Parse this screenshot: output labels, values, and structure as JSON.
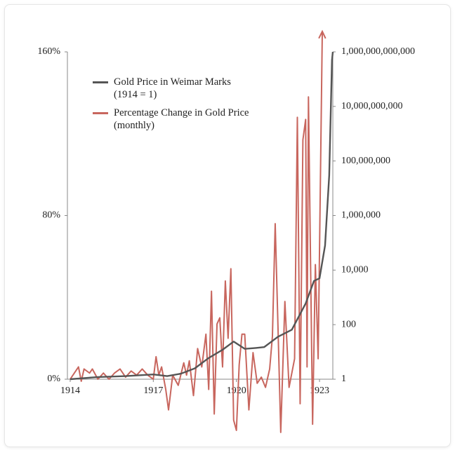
{
  "chart_data": {
    "type": "line",
    "xlim": [
      1913.9,
      1923.48
    ],
    "xticks": [
      1914,
      1917,
      1920,
      1923
    ],
    "ylim": [
      0,
      160
    ],
    "yticks": [
      {
        "value": 0,
        "label": "0%"
      },
      {
        "value": 80,
        "label": "80%"
      },
      {
        "value": 160,
        "label": "160%"
      }
    ],
    "y2lim": [
      1,
      1000000000000
    ],
    "y2scale": "log",
    "y2ticks": [
      1,
      100,
      {
        "value": 10000,
        "label": "10,000"
      },
      {
        "value": 1000000,
        "label": "1,000,000"
      },
      {
        "value": 100000000,
        "label": "100,000,000"
      },
      {
        "value": 10000000000,
        "label": "10,000,000,000"
      },
      {
        "value": 1000000000000,
        "label": "1,000,000,000,000"
      }
    ],
    "legend": "upper left",
    "series": [
      {
        "name": "Gold Price in Weimar Marks\n(1914 = 1)",
        "color": "#555555",
        "axis": "y2",
        "x": [
          1914.0,
          1915.0,
          1916.0,
          1917.0,
          1917.5,
          1918.0,
          1918.5,
          1919.0,
          1919.5,
          1919.9,
          1920.3,
          1920.7,
          1921.0,
          1921.5,
          1922.0,
          1922.5,
          1922.8,
          1923.0,
          1923.2,
          1923.35,
          1923.45,
          1923.48
        ],
        "values": [
          1,
          1.2,
          1.3,
          1.5,
          1.3,
          1.6,
          2.5,
          6,
          12,
          24,
          13,
          14,
          15,
          36,
          65,
          600,
          4000,
          5000,
          80000,
          30000000,
          500000000000,
          1000000000000
        ]
      },
      {
        "name": "Percentage Change in Gold Price\n(monthly)",
        "color": "#c8665e",
        "axis": "y",
        "x": [
          1914.0,
          1914.2,
          1914.3,
          1914.4,
          1914.5,
          1914.7,
          1914.8,
          1915.0,
          1915.2,
          1915.4,
          1915.6,
          1915.8,
          1916.0,
          1916.2,
          1916.4,
          1916.6,
          1916.8,
          1917.0,
          1917.1,
          1917.2,
          1917.3,
          1917.45,
          1917.55,
          1917.7,
          1917.9,
          1918.1,
          1918.2,
          1918.3,
          1918.45,
          1918.6,
          1918.75,
          1918.9,
          1919.0,
          1919.1,
          1919.2,
          1919.3,
          1919.4,
          1919.5,
          1919.6,
          1919.7,
          1919.8,
          1919.9,
          1920.0,
          1920.1,
          1920.2,
          1920.3,
          1920.45,
          1920.6,
          1920.75,
          1920.9,
          1921.05,
          1921.2,
          1921.3,
          1921.4,
          1921.5,
          1921.6,
          1921.75,
          1921.9,
          1922.1,
          1922.2,
          1922.3,
          1922.4,
          1922.5,
          1922.55,
          1922.6,
          1922.75,
          1922.85,
          1922.95,
          1923.1
        ],
        "values": [
          0,
          4,
          6,
          -1,
          5,
          3,
          5,
          0,
          3,
          0,
          3,
          5,
          1,
          4,
          2,
          5,
          2,
          0,
          11,
          2,
          6,
          -5,
          -15,
          2,
          -3,
          8,
          2,
          9,
          -8,
          15,
          6,
          22,
          -5,
          43,
          -17,
          27,
          30,
          6,
          48,
          20,
          54,
          -20,
          -25,
          7,
          22,
          22,
          -15,
          13,
          -2,
          1,
          -4,
          5,
          21,
          76,
          26,
          -26,
          38,
          -4,
          10,
          128,
          -12,
          117,
          127,
          6,
          138,
          -22,
          56,
          10,
          170
        ]
      }
    ]
  }
}
